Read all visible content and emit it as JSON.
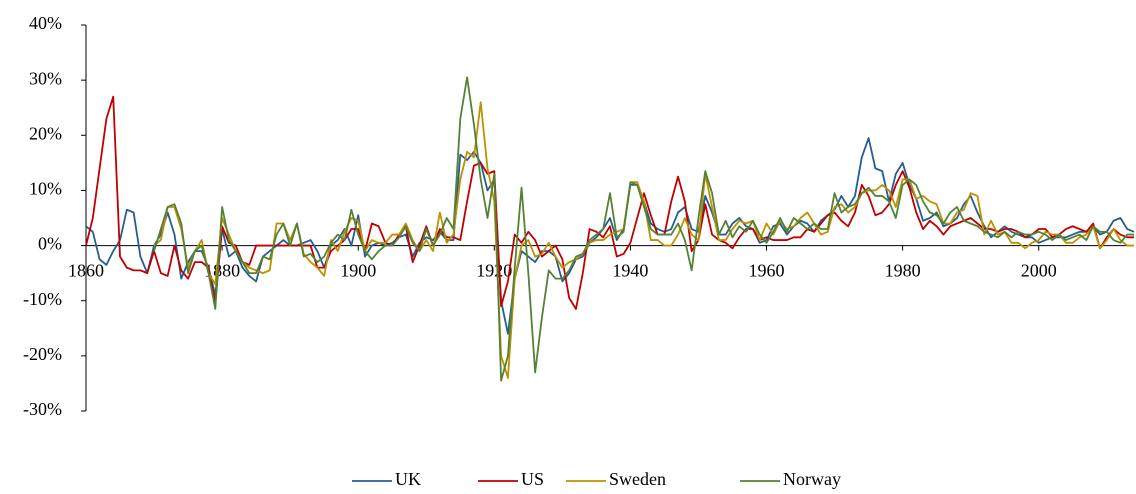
{
  "chart_data": {
    "type": "line",
    "x": [
      1860,
      1861,
      1862,
      1863,
      1864,
      1865,
      1866,
      1867,
      1868,
      1869,
      1870,
      1871,
      1872,
      1873,
      1874,
      1875,
      1876,
      1877,
      1878,
      1879,
      1880,
      1881,
      1882,
      1883,
      1884,
      1885,
      1886,
      1887,
      1888,
      1889,
      1890,
      1891,
      1892,
      1893,
      1894,
      1895,
      1896,
      1897,
      1898,
      1899,
      1900,
      1901,
      1902,
      1903,
      1904,
      1905,
      1906,
      1907,
      1908,
      1909,
      1910,
      1911,
      1912,
      1913,
      1914,
      1915,
      1916,
      1917,
      1918,
      1919,
      1920,
      1921,
      1922,
      1923,
      1924,
      1925,
      1926,
      1927,
      1928,
      1929,
      1930,
      1931,
      1932,
      1933,
      1934,
      1935,
      1936,
      1937,
      1938,
      1939,
      1940,
      1941,
      1942,
      1943,
      1944,
      1945,
      1946,
      1947,
      1948,
      1949,
      1950,
      1951,
      1952,
      1953,
      1954,
      1955,
      1956,
      1957,
      1958,
      1959,
      1960,
      1961,
      1962,
      1963,
      1964,
      1965,
      1966,
      1967,
      1968,
      1969,
      1970,
      1971,
      1972,
      1973,
      1974,
      1975,
      1976,
      1977,
      1978,
      1979,
      1980,
      1981,
      1982,
      1983,
      1984,
      1985,
      1986,
      1987,
      1988,
      1989,
      1990,
      1991,
      1992,
      1993,
      1994,
      1995,
      1996,
      1997,
      1998,
      1999,
      2000,
      2001,
      2002,
      2003,
      2004,
      2005,
      2006,
      2007,
      2008,
      2009,
      2010,
      2011,
      2012,
      2013,
      2014
    ],
    "series": [
      {
        "name": "UK",
        "color": "#255e91",
        "values": [
          3.5,
          2.5,
          -2.5,
          -3.5,
          -1,
          1,
          6.5,
          6,
          -2,
          -5,
          0,
          2,
          6,
          2,
          -6,
          -3,
          -1,
          -1,
          -4,
          -9,
          3,
          -2,
          -1,
          -4,
          -5.5,
          -6.5,
          -2,
          -1,
          0,
          1,
          0,
          0,
          0.5,
          1,
          -1,
          -4,
          0,
          1,
          3,
          0,
          5.5,
          -2,
          0,
          0.5,
          0,
          0.5,
          1.5,
          2,
          -2,
          0.5,
          1.5,
          1,
          2.5,
          1,
          1,
          16.5,
          15.5,
          17,
          15,
          10,
          12,
          -10,
          -16,
          -6,
          -1,
          -2,
          -3,
          -1,
          -1,
          -2,
          -6.5,
          -5,
          -2.5,
          -2,
          0.5,
          1.5,
          3,
          5,
          1,
          3,
          11,
          11,
          8,
          4,
          3,
          2.5,
          3,
          6,
          7,
          3,
          2.5,
          9,
          6,
          2,
          2,
          4,
          5,
          3.5,
          3,
          0.5,
          1,
          3.5,
          4,
          2,
          3.5,
          4.5,
          4,
          2.5,
          4.5,
          5.5,
          6.5,
          9,
          7,
          9,
          16,
          19.5,
          14,
          13.5,
          8,
          13,
          15,
          11,
          8.5,
          4.5,
          5,
          6,
          3.5,
          4,
          5,
          7.5,
          9,
          6,
          3.5,
          1.5,
          2.5,
          3.5,
          2.5,
          2,
          1.5,
          1.5,
          0.5,
          1,
          1.5,
          1.5,
          1.5,
          2,
          2.5,
          2.5,
          3.5,
          2,
          2.5,
          4.5,
          5,
          3,
          2.5
        ]
      },
      {
        "name": "US",
        "color": "#c00000",
        "values": [
          0,
          5,
          14,
          23,
          27,
          -2,
          -4,
          -4.5,
          -4.5,
          -5,
          -1,
          -5,
          -5.5,
          0,
          -4.5,
          -6,
          -3,
          -3,
          -4,
          -10.5,
          3.5,
          0.5,
          0,
          -3,
          -3.5,
          0,
          0,
          0,
          0,
          0,
          0,
          0,
          0,
          0,
          -4,
          -4,
          -1,
          0,
          1,
          3,
          3,
          -1,
          4,
          3.5,
          0.5,
          0,
          2,
          3.5,
          -3,
          0,
          3.5,
          0,
          3,
          1.5,
          1.5,
          1,
          8,
          14.5,
          15,
          13,
          13.5,
          -11,
          -6.5,
          2,
          0.5,
          2.5,
          1,
          -2,
          -1,
          0,
          -2.5,
          -9.5,
          -11.5,
          -5,
          3,
          2.5,
          1.5,
          3.5,
          -2,
          -1.5,
          0.5,
          5,
          9.5,
          5.5,
          2,
          2,
          8,
          12.5,
          8,
          -1,
          1,
          7.5,
          2,
          1,
          0.5,
          -0.5,
          1.5,
          3,
          3,
          1,
          1.5,
          1,
          1,
          1,
          1.5,
          1.5,
          3,
          2.5,
          4,
          5.5,
          6,
          4.5,
          3.5,
          6,
          11,
          9,
          5.5,
          6,
          7.5,
          11,
          13.5,
          10.5,
          6,
          3,
          4.5,
          3.5,
          2,
          3.5,
          4,
          4.5,
          5,
          4,
          3,
          3,
          2.5,
          3,
          3,
          2.5,
          1.5,
          2,
          3,
          3,
          1.5,
          2,
          3,
          3.5,
          3,
          2.5,
          4,
          -0.5,
          1.5,
          3,
          2,
          1.5,
          1.5
        ]
      },
      {
        "name": "Sweden",
        "color": "#bf9000",
        "values": [
          null,
          null,
          null,
          null,
          null,
          null,
          null,
          null,
          null,
          null,
          0,
          1,
          7,
          7,
          3,
          -4,
          -1,
          1,
          -5,
          -7,
          5,
          2,
          -1,
          -3,
          -4,
          -4.5,
          -5,
          -4.5,
          4,
          4,
          1,
          4,
          -1.5,
          -3,
          -4,
          -5.5,
          1,
          -1,
          2.5,
          5,
          4.5,
          -1,
          1,
          0.5,
          0.5,
          2,
          2,
          4,
          1,
          -1,
          1,
          -1,
          6,
          0.5,
          2,
          12,
          17,
          16,
          26,
          14,
          8,
          -20,
          -24,
          -6,
          0,
          1,
          -2,
          -1.5,
          0.5,
          -2,
          -4,
          -3,
          -2.5,
          -1.5,
          0.5,
          1,
          1,
          2,
          2.5,
          3,
          11.5,
          11.5,
          8,
          1,
          1,
          0,
          0,
          2,
          5,
          2,
          1,
          13,
          7,
          1,
          1,
          3,
          4.5,
          4,
          4.5,
          1,
          4,
          2,
          4.5,
          3,
          3.5,
          5,
          6,
          4,
          2,
          2.5,
          7,
          7.5,
          6,
          7,
          9.5,
          10,
          10,
          11,
          10,
          7,
          12,
          12,
          8.5,
          9,
          8,
          7.5,
          4,
          4,
          6,
          6.5,
          9.5,
          9,
          2,
          4.5,
          2,
          2.5,
          0.5,
          0.5,
          -0.5,
          0.5,
          1,
          2.5,
          2,
          2,
          0.5,
          0.5,
          1.5,
          2,
          3.5,
          -0.5,
          1,
          3,
          1,
          0,
          0
        ]
      },
      {
        "name": "Norway",
        "color": "#548235",
        "values": [
          null,
          null,
          null,
          null,
          null,
          null,
          null,
          null,
          null,
          null,
          -1,
          3,
          7,
          7.5,
          4,
          -5,
          -1,
          0,
          -5,
          -11.5,
          7,
          1,
          -1,
          -3,
          -5,
          -5,
          -2,
          -2.5,
          2,
          4,
          0,
          4,
          -2,
          -1.5,
          -3,
          -2,
          0.5,
          2,
          1,
          6.5,
          2,
          -1,
          -2.5,
          -1,
          0,
          0,
          1.5,
          3.5,
          0.5,
          -1,
          3,
          0,
          2,
          5,
          3,
          23,
          30.5,
          22,
          12,
          5,
          13,
          -24.5,
          -20,
          -4,
          10.5,
          -5,
          -23,
          -13,
          -4.5,
          -6,
          -6,
          -4.5,
          -2,
          -1.5,
          1,
          2,
          3,
          9.5,
          1.5,
          2.5,
          11.5,
          11,
          7,
          3,
          2,
          2,
          2,
          4,
          1,
          -4.5,
          5,
          13.5,
          9.5,
          2,
          4.5,
          1.5,
          3.5,
          2.5,
          4.5,
          2,
          0.5,
          2.5,
          5,
          2.5,
          5,
          4,
          3,
          4,
          3,
          3,
          9.5,
          6,
          7,
          7.5,
          9.5,
          10.5,
          9,
          9,
          8,
          5,
          11,
          12,
          11,
          8,
          6,
          5.5,
          4,
          6,
          7,
          4.5,
          4,
          3.5,
          2.5,
          2,
          1.5,
          2.5,
          1.5,
          2.5,
          2,
          2,
          2.5,
          2,
          1,
          2,
          1,
          1.5,
          2,
          1,
          3.5,
          2.5,
          2.5,
          1,
          0.5,
          2,
          2
        ]
      }
    ],
    "xlim": [
      1860,
      2014
    ],
    "xticks": [
      1860,
      1880,
      1900,
      1920,
      1940,
      1960,
      1980,
      2000
    ],
    "ylim": [
      -30,
      40
    ],
    "yticks": [
      {
        "value": -30,
        "label": "-30%"
      },
      {
        "value": -20,
        "label": "-20%"
      },
      {
        "value": -10,
        "label": "-10%"
      },
      {
        "value": 0,
        "label": "0%"
      },
      {
        "value": 10,
        "label": "10%"
      },
      {
        "value": 20,
        "label": "20%"
      },
      {
        "value": 30,
        "label": "30%"
      },
      {
        "value": 40,
        "label": "40%"
      }
    ],
    "grid": false,
    "legend": "bottom"
  }
}
